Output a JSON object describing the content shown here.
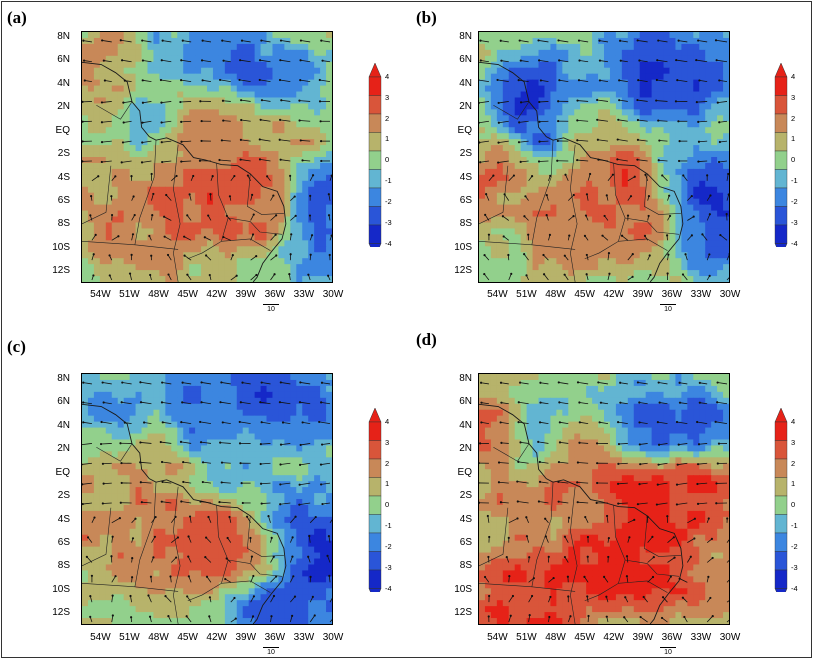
{
  "figure": {
    "panel_labels": [
      "(a)",
      "(b)",
      "(c)",
      "(d)"
    ],
    "reference_vector_label": "10",
    "colorbar_labels": [
      "4",
      "3",
      "2",
      "1",
      "0",
      "-1",
      "-2",
      "-3",
      "-4"
    ],
    "colors": {
      "levels": [
        "#1528c8",
        "#2a55d8",
        "#3c86e0",
        "#62b5d2",
        "#92d08c",
        "#b7b36b",
        "#c88858",
        "#d9553a",
        "#e62218"
      ],
      "bound_low": -4,
      "bound_high": 4
    }
  },
  "chart_data": [
    {
      "type": "heatmap",
      "panel": "(a)",
      "title": "",
      "xlabel": "",
      "ylabel": "",
      "x_ticks": [
        "54W",
        "51W",
        "48W",
        "45W",
        "42W",
        "39W",
        "36W",
        "33W",
        "30W"
      ],
      "y_ticks": [
        "8N",
        "6N",
        "4N",
        "2N",
        "EQ",
        "2S",
        "4S",
        "6S",
        "8S",
        "10S",
        "12S"
      ],
      "xlim": [
        -56,
        -30
      ],
      "ylim": [
        -13,
        8.5
      ],
      "colorbar": {
        "min": -4,
        "max": 4,
        "ticks": [
          4,
          3,
          2,
          1,
          0,
          -1,
          -2,
          -3,
          -4
        ]
      },
      "field_features": [
        {
          "lon": -40,
          "lat": 5.5,
          "value": -2.8
        },
        {
          "lon": -35,
          "lat": 4.0,
          "value": -2.2
        },
        {
          "lon": -48,
          "lat": 6.5,
          "value": -1.5
        },
        {
          "lon": -52,
          "lat": 5.0,
          "value": 2.0
        },
        {
          "lon": -42,
          "lat": 0.8,
          "value": 2.5
        },
        {
          "lon": -36,
          "lat": 0.5,
          "value": 1.8
        },
        {
          "lon": -42,
          "lat": -5.0,
          "value": 3.0
        },
        {
          "lon": -38,
          "lat": -6.5,
          "value": 2.8
        },
        {
          "lon": -46,
          "lat": -6.5,
          "value": 2.6
        },
        {
          "lon": -50,
          "lat": -9.0,
          "value": 2.0
        },
        {
          "lon": -31,
          "lat": -6.0,
          "value": -3.2
        },
        {
          "lon": -31,
          "lat": -10.0,
          "value": -2.0
        },
        {
          "lon": -54,
          "lat": -4.0,
          "value": 1.5
        },
        {
          "lon": -50,
          "lat": 1.0,
          "value": -1.0
        }
      ],
      "wind_vectors": {
        "reference_magnitude": 10
      }
    },
    {
      "type": "heatmap",
      "panel": "(b)",
      "title": "",
      "xlabel": "",
      "ylabel": "",
      "x_ticks": [
        "54W",
        "51W",
        "48W",
        "45W",
        "42W",
        "39W",
        "36W",
        "33W",
        "30W"
      ],
      "y_ticks": [
        "8N",
        "6N",
        "4N",
        "2N",
        "EQ",
        "2S",
        "4S",
        "6S",
        "8S",
        "10S",
        "12S"
      ],
      "xlim": [
        -56,
        -30
      ],
      "ylim": [
        -13,
        8.5
      ],
      "colorbar": {
        "min": -4,
        "max": 4,
        "ticks": [
          4,
          3,
          2,
          1,
          0,
          -1,
          -2,
          -3,
          -4
        ]
      },
      "field_features": [
        {
          "lon": -40,
          "lat": 6.5,
          "value": -2.5
        },
        {
          "lon": -37,
          "lat": 4.0,
          "value": -3.5
        },
        {
          "lon": -33,
          "lat": 5.0,
          "value": -3.0
        },
        {
          "lon": -50,
          "lat": 3.5,
          "value": -3.2
        },
        {
          "lon": -50,
          "lat": 0.5,
          "value": -2.8
        },
        {
          "lon": -45,
          "lat": 2.5,
          "value": -1.5
        },
        {
          "lon": -34,
          "lat": -4.0,
          "value": -2.2
        },
        {
          "lon": -32,
          "lat": -6.5,
          "value": -3.5
        },
        {
          "lon": -31,
          "lat": -9.0,
          "value": -2.5
        },
        {
          "lon": -42,
          "lat": -4.5,
          "value": 3.0
        },
        {
          "lon": -39,
          "lat": -7.0,
          "value": 2.5
        },
        {
          "lon": -47,
          "lat": -8.0,
          "value": 2.2
        },
        {
          "lon": -54,
          "lat": -3.5,
          "value": 2.0
        },
        {
          "lon": -44,
          "lat": 0.0,
          "value": 1.8
        }
      ],
      "wind_vectors": {
        "reference_magnitude": 10
      }
    },
    {
      "type": "heatmap",
      "panel": "(c)",
      "title": "",
      "xlabel": "",
      "ylabel": "",
      "x_ticks": [
        "54W",
        "51W",
        "48W",
        "45W",
        "42W",
        "39W",
        "36W",
        "33W",
        "30W"
      ],
      "y_ticks": [
        "8N",
        "6N",
        "4N",
        "2N",
        "EQ",
        "2S",
        "4S",
        "6S",
        "8S",
        "10S",
        "12S"
      ],
      "xlim": [
        -56,
        -30
      ],
      "ylim": [
        -13,
        8.5
      ],
      "colorbar": {
        "min": -4,
        "max": 4,
        "ticks": [
          4,
          3,
          2,
          1,
          0,
          -1,
          -2,
          -3,
          -4
        ]
      },
      "field_features": [
        {
          "lon": -38,
          "lat": 6.5,
          "value": -3.2
        },
        {
          "lon": -44,
          "lat": 5.5,
          "value": -2.5
        },
        {
          "lon": -33,
          "lat": 5.0,
          "value": -2.8
        },
        {
          "lon": -52,
          "lat": 6.0,
          "value": -1.5
        },
        {
          "lon": -42,
          "lat": 2.0,
          "value": -1.5
        },
        {
          "lon": -31,
          "lat": -6.0,
          "value": -3.5
        },
        {
          "lon": -31,
          "lat": -10.0,
          "value": -3.0
        },
        {
          "lon": -34,
          "lat": -4.0,
          "value": -2.2
        },
        {
          "lon": -36,
          "lat": -11.5,
          "value": -3.0
        },
        {
          "lon": -45,
          "lat": -6.0,
          "value": 3.0
        },
        {
          "lon": -39,
          "lat": -6.5,
          "value": 2.8
        },
        {
          "lon": -49,
          "lat": -5.5,
          "value": 2.2
        },
        {
          "lon": -54,
          "lat": -4.0,
          "value": 1.8
        },
        {
          "lon": -48,
          "lat": 0.5,
          "value": 1.5
        }
      ],
      "wind_vectors": {
        "reference_magnitude": 10
      }
    },
    {
      "type": "heatmap",
      "panel": "(d)",
      "title": "",
      "xlabel": "",
      "ylabel": "",
      "x_ticks": [
        "54W",
        "51W",
        "48W",
        "45W",
        "42W",
        "39W",
        "36W",
        "33W",
        "30W"
      ],
      "y_ticks": [
        "8N",
        "6N",
        "4N",
        "2N",
        "EQ",
        "2S",
        "4S",
        "6S",
        "8S",
        "10S",
        "12S"
      ],
      "xlim": [
        -56,
        -30
      ],
      "ylim": [
        -13,
        8.5
      ],
      "colorbar": {
        "min": -4,
        "max": 4,
        "ticks": [
          4,
          3,
          2,
          1,
          0,
          -1,
          -2,
          -3,
          -4
        ]
      },
      "field_features": [
        {
          "lon": -39,
          "lat": 4.0,
          "value": -3.2
        },
        {
          "lon": -34,
          "lat": 4.0,
          "value": -2.8
        },
        {
          "lon": -50,
          "lat": 3.5,
          "value": -1.5
        },
        {
          "lon": -40,
          "lat": -1.0,
          "value": 4.0
        },
        {
          "lon": -34,
          "lat": -1.5,
          "value": 3.8
        },
        {
          "lon": -38,
          "lat": -5.5,
          "value": 4.0
        },
        {
          "lon": -42,
          "lat": -8.0,
          "value": 4.2
        },
        {
          "lon": -48,
          "lat": -10.5,
          "value": 3.8
        },
        {
          "lon": -52,
          "lat": -11.0,
          "value": 3.5
        },
        {
          "lon": -35,
          "lat": -8.0,
          "value": 3.5
        },
        {
          "lon": -54,
          "lat": 3.5,
          "value": 2.5
        },
        {
          "lon": -50,
          "lat": -3.0,
          "value": 2.2
        },
        {
          "lon": -31,
          "lat": -9.0,
          "value": 1.5
        },
        {
          "lon": -45,
          "lat": 1.5,
          "value": 1.8
        }
      ],
      "wind_vectors": {
        "reference_magnitude": 10
      }
    }
  ]
}
